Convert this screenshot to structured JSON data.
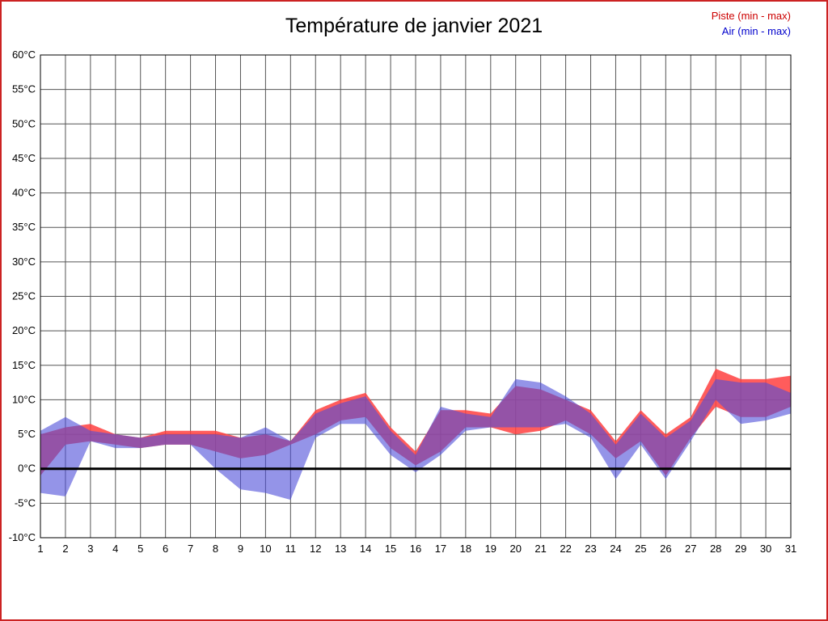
{
  "title": "Température de janvier 2021",
  "legend": {
    "piste_label": "Piste (min - max)",
    "air_label": "Air (min - max)"
  },
  "colors": {
    "frame_border": "#cc2222",
    "piste_fill": "#ff4040",
    "air_fill": "#4d4dd9",
    "piste_text": "#cc0000",
    "air_text": "#0000cc",
    "grid": "#555555",
    "zero_line": "#000000",
    "axis_text": "#000000"
  },
  "chart_data": {
    "type": "area",
    "subtype": "min-max-bands",
    "title": "Température de janvier 2021",
    "xlabel": "",
    "ylabel": "",
    "x": [
      1,
      2,
      3,
      4,
      5,
      6,
      7,
      8,
      9,
      10,
      11,
      12,
      13,
      14,
      15,
      16,
      17,
      18,
      19,
      20,
      21,
      22,
      23,
      24,
      25,
      26,
      27,
      28,
      29,
      30,
      31
    ],
    "xtick_labels": [
      "1",
      "2",
      "3",
      "4",
      "5",
      "6",
      "7",
      "8",
      "9",
      "10",
      "11",
      "12",
      "13",
      "14",
      "15",
      "16",
      "17",
      "18",
      "19",
      "20",
      "21",
      "22",
      "23",
      "24",
      "25",
      "26",
      "27",
      "28",
      "29",
      "30",
      "31"
    ],
    "ylim": [
      -10,
      60
    ],
    "ytick_step": 5,
    "ytick_labels": [
      "60°C",
      "55°C",
      "50°C",
      "45°C",
      "40°C",
      "35°C",
      "30°C",
      "25°C",
      "20°C",
      "15°C",
      "10°C",
      "5°C",
      "0°C",
      "-5°C",
      "-10°C"
    ],
    "grid": true,
    "legend_position": "top-right",
    "series": [
      {
        "name": "Piste min",
        "values": [
          -1,
          3.5,
          4,
          3.5,
          3,
          3.5,
          3.5,
          2.5,
          1.5,
          2,
          3.5,
          5,
          7,
          7.5,
          3,
          0.5,
          2.5,
          6,
          6,
          5,
          5.5,
          7,
          5,
          1.5,
          4,
          -1,
          4.5,
          9,
          7.5,
          7.5,
          9
        ]
      },
      {
        "name": "Piste max",
        "values": [
          5,
          6,
          6.5,
          5,
          4.5,
          5.5,
          5.5,
          5.5,
          4.5,
          5,
          4,
          8.5,
          10,
          11,
          6,
          2.5,
          8.5,
          8.5,
          8,
          12,
          11.5,
          10,
          8.5,
          4,
          8.5,
          5,
          7.5,
          14.5,
          13,
          13,
          13.5
        ]
      },
      {
        "name": "Air min",
        "values": [
          -3.5,
          -4,
          4,
          3,
          3,
          3.5,
          3.5,
          0,
          -3,
          -3.5,
          -4.5,
          4.5,
          6.5,
          6.5,
          2,
          -0.5,
          2,
          5.5,
          6,
          6,
          6,
          6.5,
          4.5,
          -1.5,
          3.5,
          -1.5,
          4,
          10,
          6.5,
          7,
          8
        ]
      },
      {
        "name": "Air max",
        "values": [
          5.5,
          7.5,
          5.5,
          5,
          4.5,
          5,
          5,
          5,
          4.5,
          6,
          4,
          8,
          9.5,
          10.5,
          5.5,
          2,
          9,
          8,
          7.5,
          13,
          12.5,
          10.5,
          8,
          3.5,
          8,
          4.5,
          7,
          13,
          12.5,
          12.5,
          11
        ]
      }
    ]
  }
}
